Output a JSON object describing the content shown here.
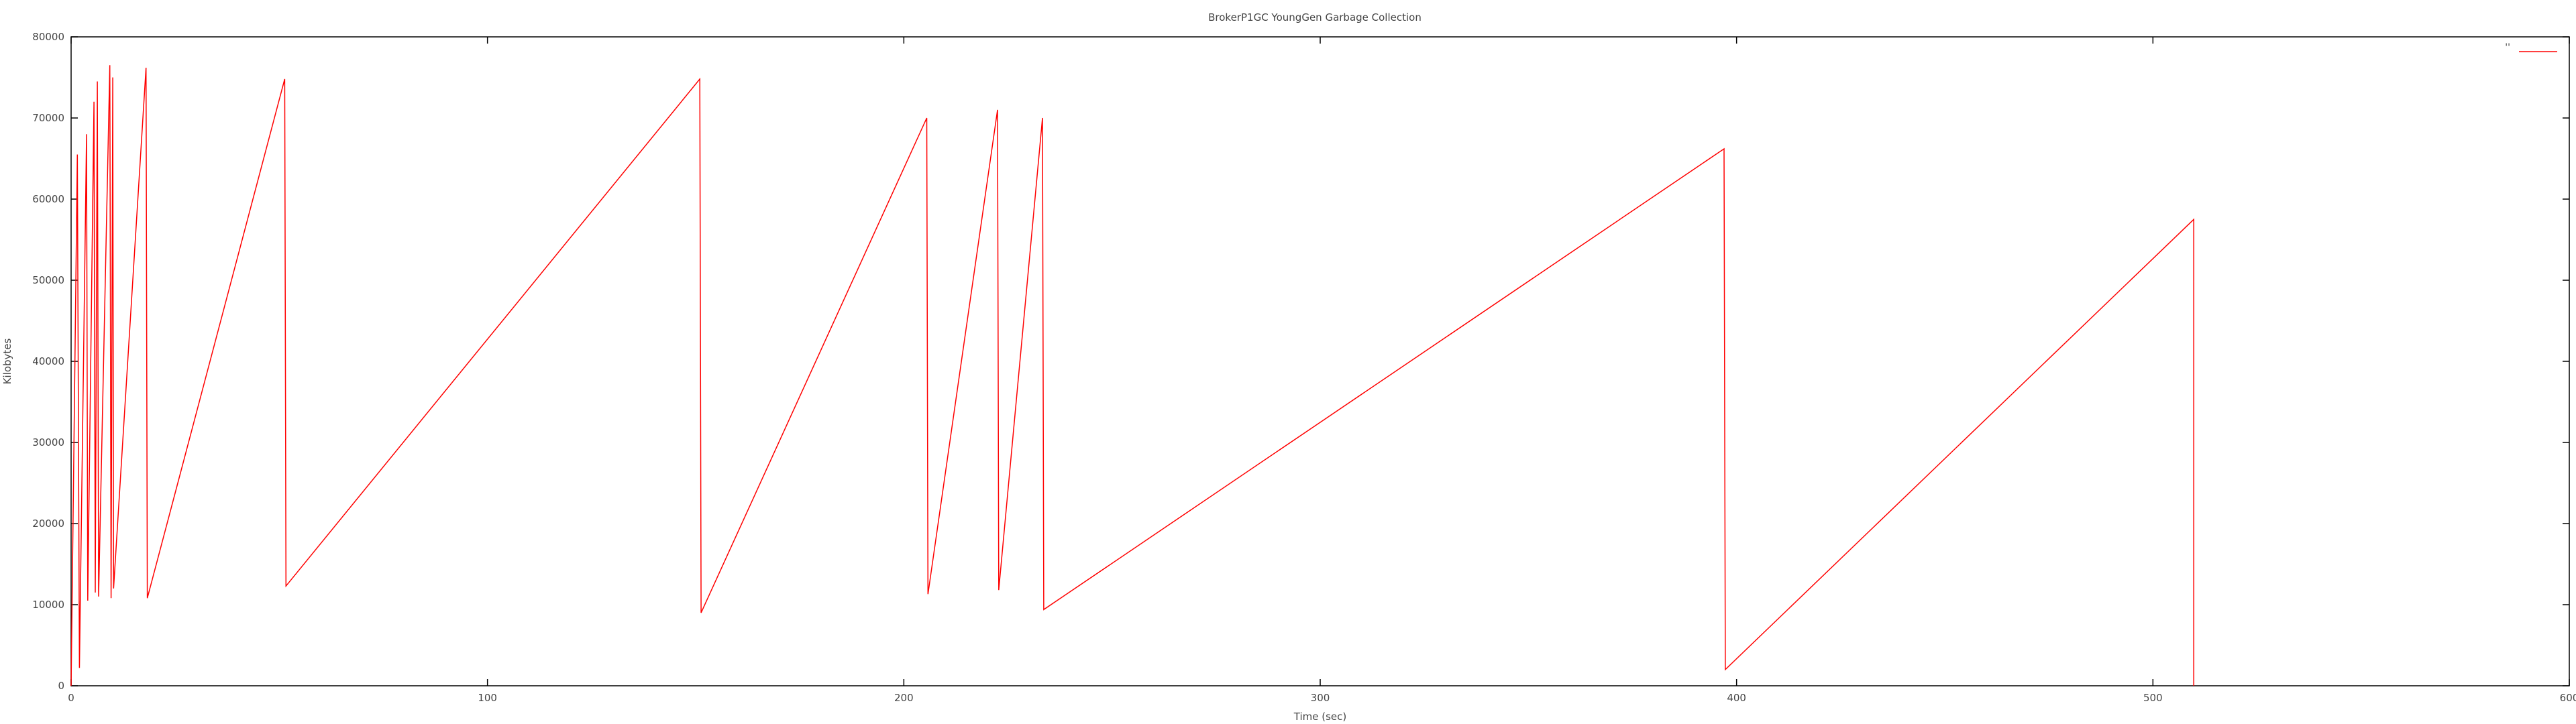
{
  "chart_data": {
    "type": "line",
    "title": "BrokerP1GC YoungGen Garbage Collection",
    "xlabel": "Time (sec)",
    "ylabel": "Kilobytes",
    "xlim": [
      0,
      600
    ],
    "ylim": [
      0,
      80000
    ],
    "x_ticks": [
      0,
      100,
      200,
      300,
      400,
      500,
      600
    ],
    "y_ticks": [
      0,
      10000,
      20000,
      30000,
      40000,
      50000,
      60000,
      70000,
      80000
    ],
    "grid": false,
    "legend": {
      "position": "top-right"
    },
    "series": [
      {
        "name": "''",
        "color": "#ff0000",
        "points": [
          [
            0,
            0
          ],
          [
            1.5,
            65500
          ],
          [
            2.0,
            2200
          ],
          [
            3.7,
            68000
          ],
          [
            4.0,
            10500
          ],
          [
            5.5,
            72000
          ],
          [
            5.8,
            11500
          ],
          [
            6.3,
            74500
          ],
          [
            6.6,
            11000
          ],
          [
            9.3,
            76500
          ],
          [
            9.6,
            10800
          ],
          [
            10.0,
            75000
          ],
          [
            10.2,
            12000
          ],
          [
            18.0,
            76200
          ],
          [
            18.3,
            10800
          ],
          [
            51.3,
            74800
          ],
          [
            51.6,
            12300
          ],
          [
            151.0,
            74800
          ],
          [
            151.3,
            9000
          ],
          [
            205.5,
            70000
          ],
          [
            205.8,
            11300
          ],
          [
            222.5,
            71000
          ],
          [
            222.8,
            11800
          ],
          [
            233.3,
            70000
          ],
          [
            233.6,
            9400
          ],
          [
            397.0,
            66200
          ],
          [
            397.3,
            2000
          ],
          [
            509.8,
            57500
          ],
          [
            509.8,
            0
          ]
        ]
      }
    ]
  }
}
